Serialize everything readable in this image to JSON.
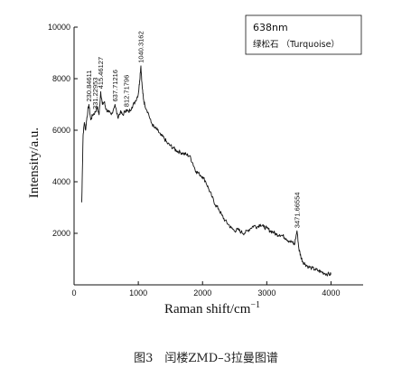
{
  "chart_data": {
    "type": "line",
    "title": "",
    "xlabel": "Raman shift/cm",
    "xlabel_sup": "−1",
    "ylabel": "Intensity/a.u.",
    "xlim": [
      0,
      4500
    ],
    "ylim": [
      0,
      10000
    ],
    "xticks": [
      0,
      1000,
      2000,
      3000,
      4000
    ],
    "yticks": [
      2000,
      4000,
      6000,
      8000,
      10000
    ],
    "legend": {
      "line1": "638nm",
      "line2": "绿松石 （Turquoise）",
      "placement": "top-right"
    },
    "peaks": [
      {
        "x": 230.84611,
        "y": 7000,
        "label": "230.84611"
      },
      {
        "x": 331.22953,
        "y": 6700,
        "label": "331.22953"
      },
      {
        "x": 415.46127,
        "y": 7500,
        "label": "415.46127"
      },
      {
        "x": 637.71216,
        "y": 7000,
        "label": "637.71216"
      },
      {
        "x": 812.71796,
        "y": 6800,
        "label": "812.71796"
      },
      {
        "x": 1040.3162,
        "y": 8500,
        "label": "1040.3162"
      },
      {
        "x": 3471.66554,
        "y": 2100,
        "label": "3471.66554"
      }
    ],
    "series": [
      {
        "x": [
          120,
          140,
          160,
          180,
          200,
          230,
          260,
          290,
          331,
          360,
          390,
          415,
          440,
          470,
          500,
          540,
          580,
          637,
          680,
          720,
          760,
          812,
          850,
          900,
          950,
          1000,
          1020,
          1040,
          1060,
          1080,
          1100,
          1150,
          1200,
          1250,
          1300,
          1350,
          1400,
          1450,
          1500,
          1550,
          1600,
          1650,
          1700,
          1750,
          1800,
          1850,
          1900,
          1950,
          2000,
          2050,
          2100,
          2150,
          2200,
          2250,
          2300,
          2350,
          2400,
          2450,
          2500,
          2550,
          2600,
          2650,
          2700,
          2750,
          2800,
          2850,
          2900,
          2950,
          3000,
          3050,
          3100,
          3150,
          3200,
          3250,
          3300,
          3350,
          3400,
          3430,
          3471,
          3500,
          3530,
          3560,
          3600,
          3650,
          3700,
          3750,
          3800,
          3850,
          3900,
          3950,
          4000
        ],
        "y": [
          3200,
          5800,
          6300,
          6000,
          6500,
          7000,
          6400,
          6600,
          6700,
          6900,
          6600,
          7500,
          7000,
          7100,
          6800,
          6700,
          6600,
          7000,
          6500,
          6700,
          6600,
          6800,
          6700,
          6900,
          7100,
          7400,
          7900,
          8500,
          7700,
          7200,
          7000,
          6700,
          6300,
          6100,
          6000,
          5800,
          5700,
          5500,
          5400,
          5300,
          5200,
          5150,
          5100,
          5050,
          5000,
          4700,
          4400,
          4300,
          4200,
          4000,
          3700,
          3400,
          3100,
          2950,
          2700,
          2500,
          2350,
          2200,
          2100,
          2150,
          2050,
          2000,
          2100,
          2200,
          2300,
          2250,
          2350,
          2250,
          2200,
          2100,
          2050,
          1950,
          1950,
          1900,
          1800,
          1700,
          1650,
          1550,
          2100,
          1400,
          1100,
          900,
          800,
          700,
          650,
          600,
          550,
          500,
          450,
          420,
          400
        ]
      }
    ]
  },
  "caption": "图3　闰楼ZMD–3拉曼图谱"
}
